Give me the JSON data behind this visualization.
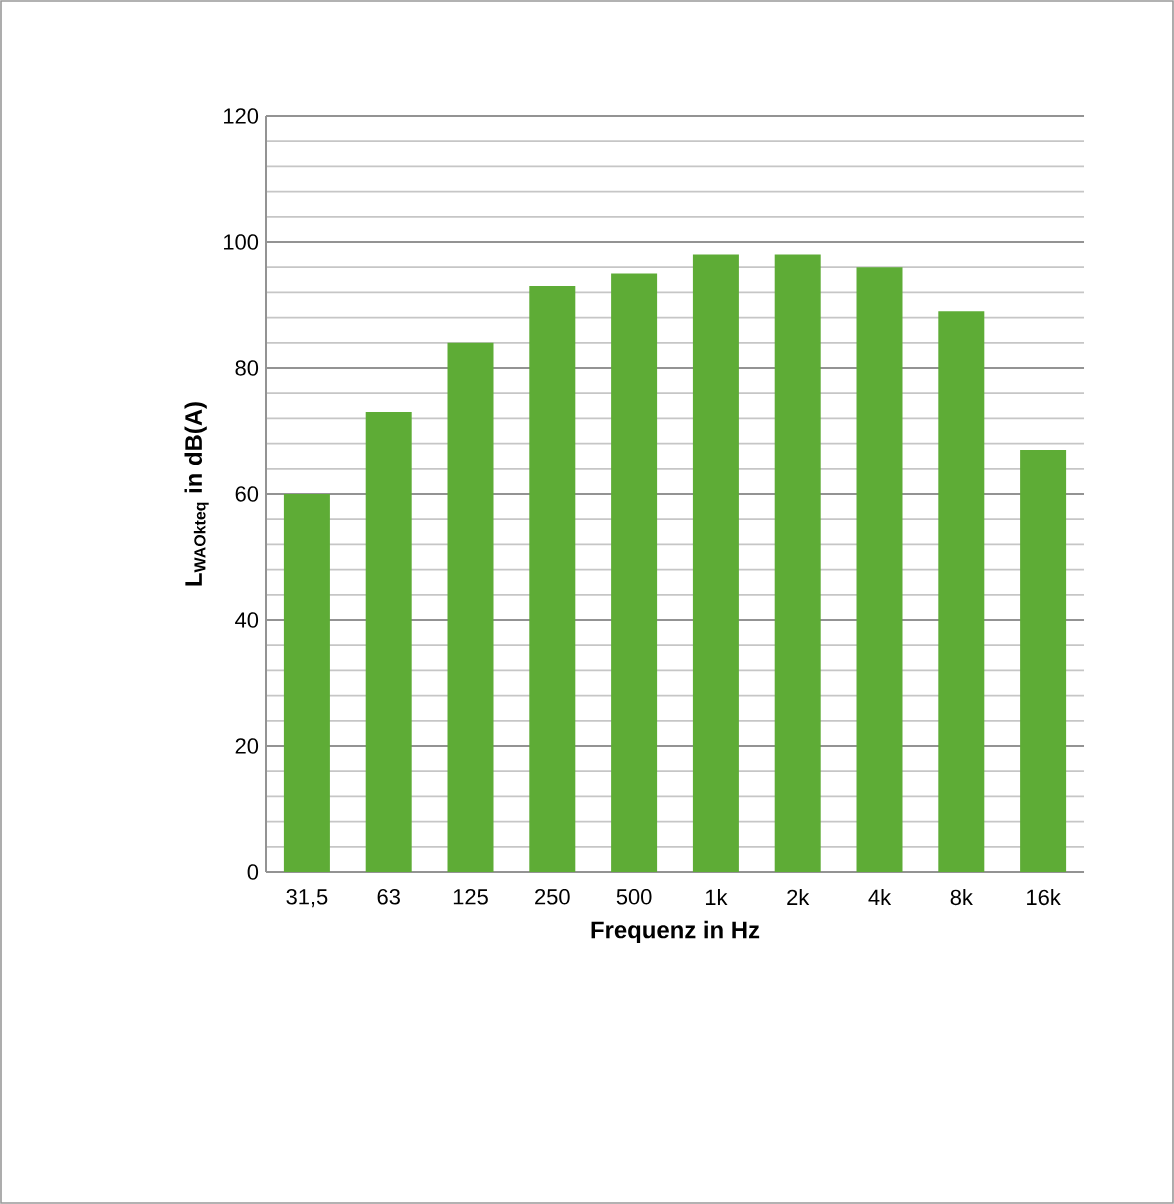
{
  "chart_data": {
    "type": "bar",
    "categories": [
      "31,5",
      "63",
      "125",
      "250",
      "500",
      "1k",
      "2k",
      "4k",
      "8k",
      "16k"
    ],
    "values": [
      60,
      73,
      84,
      93,
      95,
      98,
      98,
      96,
      89,
      67
    ],
    "color": "#5eac36",
    "xlabel": "Frequenz in Hz",
    "ylabel": "L$_{WAOkteq}$ in dB(A)",
    "ylim": [
      0,
      120
    ],
    "yticks": [
      0,
      20,
      40,
      60,
      80,
      100,
      120
    ],
    "grid": "y"
  }
}
